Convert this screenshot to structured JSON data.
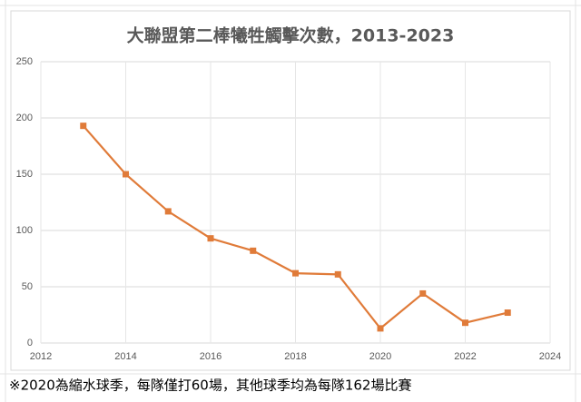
{
  "chart_data": {
    "type": "line",
    "title": "大聯盟第二棒犧牲觸擊次數，2013-2023",
    "note": "※2020為縮水球季，每隊僅打60場，其他球季均為每隊162場比賽",
    "x": [
      2013,
      2014,
      2015,
      2016,
      2017,
      2018,
      2019,
      2020,
      2021,
      2022,
      2023
    ],
    "series": [
      {
        "name": "犧牲觸擊次數",
        "color": "#e07b39",
        "values": [
          193,
          150,
          117,
          93,
          82,
          62,
          61,
          13,
          44,
          18,
          27
        ]
      }
    ],
    "xlim": [
      2012,
      2024
    ],
    "xticks": [
      2012,
      2014,
      2016,
      2018,
      2020,
      2022,
      2024
    ],
    "ylim": [
      0,
      250
    ],
    "yticks": [
      0,
      50,
      100,
      150,
      200,
      250
    ],
    "grid": true,
    "legend": false
  }
}
